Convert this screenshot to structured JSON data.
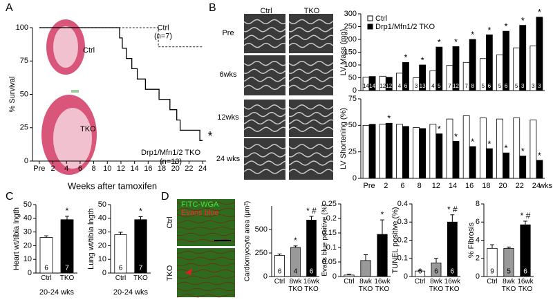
{
  "figure": {
    "panel_labels": [
      "A",
      "B",
      "C",
      "D"
    ],
    "heart_labels": [
      "Ctrl",
      "TKO"
    ],
    "echo_columns": [
      "Ctrl",
      "TKO"
    ],
    "echo_rows": [
      "Pre",
      "6wks",
      "12wks",
      "24 wks"
    ],
    "stain_labels": [
      "FITC-WGA",
      "Evans blue"
    ],
    "micro_rows": [
      "Ctrl",
      "TKO"
    ]
  },
  "chart_data": [
    {
      "type": "line",
      "y_label": "% Survival",
      "x_label": "Weeks after tamoxifen",
      "xlim": [
        -1,
        24.5
      ],
      "ylim": [
        0,
        100
      ],
      "xticks": [
        {
          "value": 0,
          "label": "Pre"
        },
        2,
        4,
        6,
        8,
        10,
        12,
        14,
        16,
        18,
        20,
        22,
        24
      ],
      "yticks": [
        0,
        25,
        50,
        75,
        100
      ],
      "series": [
        {
          "name": "Ctrl",
          "n_label": "(n=7)",
          "color": "#555555",
          "dashed": true,
          "x": [
            0,
            17.5,
            17.5,
            24
          ],
          "values": [
            100,
            100,
            85.7,
            85.7
          ]
        },
        {
          "name": "Drp1/Mfn1/2 TKO",
          "n_label": "(n=13)",
          "annotation": "*",
          "color": "#000000",
          "dashed": false,
          "x": [
            0,
            11.8,
            11.8,
            12.2,
            12.2,
            12.8,
            12.8,
            13.6,
            13.6,
            14.4,
            14.4,
            15.6,
            15.6,
            17.6,
            17.6,
            19.2,
            19.2,
            20.2,
            20.2,
            20.7,
            20.7,
            23.6,
            23.6,
            24
          ],
          "values": [
            100,
            100,
            92.3,
            92.3,
            84.6,
            84.6,
            76.9,
            76.9,
            69.2,
            69.2,
            61.5,
            61.5,
            53.8,
            53.8,
            46.2,
            46.2,
            38.5,
            38.5,
            30.8,
            30.8,
            23.1,
            23.1,
            15.4,
            15.4
          ]
        }
      ]
    },
    {
      "type": "grouped-bar",
      "y_label": "LV Mass (mg)",
      "ylim": [
        0,
        300
      ],
      "yticks": [
        0,
        50,
        100,
        150,
        200,
        250,
        300
      ],
      "legend": true,
      "series": [
        {
          "name": "Ctrl",
          "color": "#ffffff",
          "values": [
            52,
            56,
            68,
            50,
            77,
            98,
            110,
            125,
            140,
            167,
            175
          ],
          "n": [
            14,
            12,
            4,
            3,
            4,
            7,
            7,
            5,
            5,
            5,
            3
          ]
        },
        {
          "name": "Drp1/Mfn1/2 TKO",
          "color": "#000000",
          "values": [
            55,
            52,
            110,
            100,
            170,
            172,
            200,
            218,
            232,
            255,
            287
          ],
          "n": [
            14,
            12,
            6,
            13,
            5,
            12,
            8,
            6,
            6,
            3,
            3
          ],
          "stars": [
            null,
            null,
            "*",
            "*",
            "*",
            "*",
            "*",
            "*",
            "*",
            "*",
            "*"
          ]
        }
      ]
    },
    {
      "type": "grouped-bar",
      "y_label": "LV Shortening (%)",
      "ylim": [
        0,
        75
      ],
      "yticks": [
        0,
        25,
        50,
        75
      ],
      "legend": false,
      "categories": [
        "Pre",
        "2",
        "6",
        "8",
        "12",
        "14",
        "16",
        "18",
        "20",
        "22",
        "24"
      ],
      "x_unit": "wks",
      "series": [
        {
          "name": "Ctrl",
          "color": "#ffffff",
          "values": [
            50,
            51,
            51,
            48,
            51,
            56,
            59,
            57,
            56,
            57,
            55
          ]
        },
        {
          "name": "Drp1/Mfn1/2 TKO",
          "color": "#000000",
          "values": [
            51,
            52,
            49,
            47,
            42,
            35,
            30,
            28,
            24,
            21,
            17
          ],
          "stars": [
            null,
            "*",
            null,
            null,
            "*",
            "*",
            "*",
            "*",
            "*",
            "*",
            "*"
          ]
        }
      ]
    },
    {
      "type": "bar",
      "y_label": "Heart wt/tibia lngth",
      "x_label": "20-24 wks",
      "ylim": [
        0,
        50
      ],
      "yticks": [
        0,
        10,
        20,
        30,
        40,
        50
      ],
      "categories": [
        "Ctrl",
        "TKO"
      ],
      "values": [
        26,
        39
      ],
      "errors": [
        1.2,
        2.5
      ],
      "colors": [
        "#ffffff",
        "#000000"
      ],
      "n": [
        6,
        7
      ],
      "annotations": [
        null,
        "*"
      ]
    },
    {
      "type": "bar",
      "y_label": "Lung wt/tibia lngth",
      "x_label": "20-24 wks",
      "ylim": [
        0,
        50
      ],
      "yticks": [
        0,
        10,
        20,
        30,
        40,
        50
      ],
      "categories": [
        "Ctrl",
        "TKO"
      ],
      "values": [
        28,
        39
      ],
      "errors": [
        1.8,
        2.2
      ],
      "colors": [
        "#ffffff",
        "#000000"
      ],
      "n": [
        6,
        7
      ],
      "annotations": [
        null,
        "*"
      ]
    },
    {
      "type": "bar",
      "y_label": "Cardiomyocyte area (μm²)",
      "ylim": [
        0,
        750
      ],
      "yticks": [
        0,
        250,
        500
      ],
      "categories": [
        "Ctrl",
        "8wk TKO",
        "16wk TKO"
      ],
      "values": [
        225,
        310,
        600
      ],
      "errors": [
        15,
        15,
        40
      ],
      "colors": [
        "#ffffff",
        "#999999",
        "#000000"
      ],
      "n": [
        6,
        4,
        6
      ],
      "annotations": [
        null,
        "*",
        "* #"
      ]
    },
    {
      "type": "bar",
      "y_label": "Evans blue positive (%)",
      "ylim": [
        0,
        0.25
      ],
      "yticks": [
        0,
        0.05,
        0.1,
        0.15,
        0.2,
        0.25
      ],
      "categories": [
        "Ctrl",
        "8wk TKO",
        "16wk TKO"
      ],
      "values": [
        0.005,
        0.055,
        0.145
      ],
      "errors": [
        0.003,
        0.02,
        0.05
      ],
      "colors": [
        "#ffffff",
        "#999999",
        "#000000"
      ],
      "annotations": [
        null,
        null,
        "*"
      ]
    },
    {
      "type": "bar",
      "y_label": "TUNEL positive (%)",
      "ylim": [
        0,
        0.4
      ],
      "yticks": [
        0,
        0.1,
        0.2,
        0.3,
        0.4
      ],
      "categories": [
        "Ctrl",
        "8wk TKO",
        "16wk TKO"
      ],
      "values": [
        0.03,
        0.075,
        0.3
      ],
      "errors": [
        0.005,
        0.025,
        0.04
      ],
      "colors": [
        "#ffffff",
        "#999999",
        "#000000"
      ],
      "n": [
        6,
        6,
        6
      ],
      "annotations": [
        null,
        null,
        "* #"
      ]
    },
    {
      "type": "bar",
      "y_label": "% Fibrosis",
      "ylim": [
        0,
        8
      ],
      "yticks": [
        0,
        2,
        4,
        6,
        8
      ],
      "categories": [
        "Ctrl",
        "8wk TKO",
        "16wk TKO"
      ],
      "values": [
        3.1,
        3.1,
        5.7
      ],
      "errors": [
        0.4,
        0.15,
        0.4
      ],
      "colors": [
        "#ffffff",
        "#999999",
        "#000000"
      ],
      "n": [
        9,
        5,
        6
      ],
      "annotations": [
        null,
        null,
        "* #"
      ]
    }
  ]
}
